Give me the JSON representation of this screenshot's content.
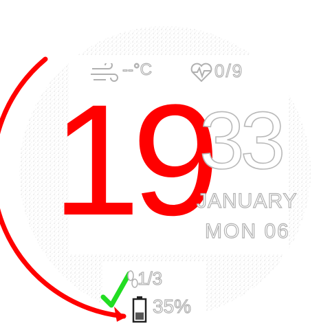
{
  "time": {
    "hour": "19",
    "minute": "33"
  },
  "date": {
    "month": "JANUARY",
    "weekday_day": "MON 06"
  },
  "weather": {
    "icon": "wind-icon",
    "temperature": "--°C"
  },
  "heart_rate": {
    "icon": "heart-pulse-icon",
    "value": "0/9"
  },
  "steps": {
    "icon": "footsteps-icon",
    "value": "1/3"
  },
  "battery": {
    "icon": "battery-icon",
    "value": "35%",
    "level": 0.35
  },
  "goal": {
    "icon": "checkmark-icon",
    "progress": 0.35
  },
  "colors": {
    "accent": "#ff0000",
    "check": "#22dd22",
    "outline": "#b0b0b0",
    "background": "#ffffff"
  }
}
